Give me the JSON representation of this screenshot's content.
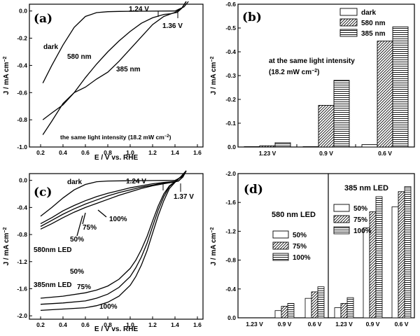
{
  "chart_data": [
    {
      "panel": "(a)",
      "type": "line",
      "xlabel": "E / V vs. RHE",
      "ylabel": "J / mA cm−2",
      "xlim": [
        0.1,
        1.65
      ],
      "ylim": [
        -1.0,
        0.05
      ],
      "xticks": [
        "0.2",
        "0.4",
        "0.6",
        "0.8",
        "1.0",
        "1.2",
        "1.4",
        "1.6"
      ],
      "yticks": [
        "-1.0",
        "-0.8",
        "-0.6",
        "-0.4",
        "-0.2",
        "0.0"
      ],
      "series": [
        {
          "name": "dark",
          "x": [
            0.22,
            0.3,
            0.4,
            0.5,
            0.6,
            0.7,
            0.8,
            0.9,
            1.0,
            1.2,
            1.4,
            1.48,
            1.52
          ],
          "y": [
            -0.53,
            -0.4,
            -0.25,
            -0.12,
            -0.04,
            -0.012,
            -0.005,
            -0.003,
            -0.002,
            -0.001,
            0.0,
            0.03,
            0.07
          ]
        },
        {
          "name": "580 nm",
          "x": [
            0.22,
            0.3,
            0.4,
            0.5,
            0.6,
            0.7,
            0.8,
            0.9,
            1.0,
            1.1,
            1.2,
            1.3,
            1.36,
            1.42,
            1.46,
            1.5
          ],
          "y": [
            -0.8,
            -0.75,
            -0.69,
            -0.6,
            -0.49,
            -0.39,
            -0.3,
            -0.22,
            -0.15,
            -0.09,
            -0.05,
            -0.025,
            -0.02,
            -0.01,
            0.02,
            0.07
          ]
        },
        {
          "name": "385 nm",
          "x": [
            0.22,
            0.3,
            0.4,
            0.5,
            0.6,
            0.7,
            0.8,
            0.9,
            1.0,
            1.1,
            1.2,
            1.3,
            1.4,
            1.46,
            1.5
          ],
          "y": [
            -0.91,
            -0.81,
            -0.68,
            -0.6,
            -0.56,
            -0.5,
            -0.45,
            -0.37,
            -0.28,
            -0.19,
            -0.1,
            -0.04,
            -0.01,
            0.02,
            0.07
          ]
        }
      ],
      "labels": {
        "dark": "dark",
        "l580": "580 nm",
        "l385": "385 nm",
        "v1": "1.24 V",
        "v2": "1.36 V",
        "note": "the same light intensity (18.2 mW cm−2)"
      }
    },
    {
      "panel": "(b)",
      "type": "bar",
      "ylabel": "J / mA cm−2",
      "categories": [
        "1.23 V",
        "0.9 V",
        "0.6 V"
      ],
      "ylim": [
        0.0,
        -0.6
      ],
      "yticks": [
        "0.0",
        "-0.1",
        "-0.2",
        "-0.3",
        "-0.4",
        "-0.5",
        "-0.6"
      ],
      "series": [
        {
          "name": "dark",
          "values": [
            0.0,
            0.0,
            -0.01
          ]
        },
        {
          "name": "580 nm",
          "values": [
            -0.005,
            -0.175,
            -0.445
          ]
        },
        {
          "name": "385 nm",
          "values": [
            -0.018,
            -0.28,
            -0.505
          ]
        }
      ],
      "annotation": "at the same light intensity",
      "annotation2": "(18.2 mW cm−2)"
    },
    {
      "panel": "(c)",
      "type": "line",
      "xlabel": "E / V vs. RHE",
      "ylabel": "J / mA cm−2",
      "xlim": [
        0.1,
        1.65
      ],
      "ylim": [
        -2.05,
        0.1
      ],
      "xticks": [
        "0.2",
        "0.4",
        "0.6",
        "0.8",
        "1.0",
        "1.2",
        "1.4",
        "1.6"
      ],
      "yticks": [
        "-2.0",
        "-1.6",
        "-1.2",
        "-0.8",
        "-0.4",
        "0.0"
      ],
      "series": [
        {
          "name": "dark",
          "x": [
            0.2,
            0.3,
            0.4,
            0.5,
            0.6,
            0.7,
            0.8,
            1.0,
            1.2,
            1.4,
            1.46,
            1.5
          ],
          "y": [
            -0.53,
            -0.4,
            -0.26,
            -0.14,
            -0.06,
            -0.02,
            -0.01,
            -0.005,
            -0.002,
            0.0,
            0.05,
            0.15
          ]
        },
        {
          "name": "580nm 50%",
          "x": [
            0.2,
            0.3,
            0.4,
            0.5,
            0.6,
            0.7,
            0.8,
            0.9,
            1.0,
            1.1,
            1.2,
            1.3,
            1.37,
            1.43,
            1.47,
            1.5
          ],
          "y": [
            -0.72,
            -0.64,
            -0.55,
            -0.47,
            -0.4,
            -0.34,
            -0.28,
            -0.22,
            -0.17,
            -0.12,
            -0.08,
            -0.05,
            -0.03,
            -0.01,
            0.05,
            0.15
          ]
        },
        {
          "name": "580nm 75%",
          "x": [
            0.2,
            0.3,
            0.4,
            0.5,
            0.6,
            0.7,
            0.8,
            0.9,
            1.0,
            1.1,
            1.2,
            1.3,
            1.37,
            1.43,
            1.47,
            1.5
          ],
          "y": [
            -0.68,
            -0.59,
            -0.5,
            -0.42,
            -0.35,
            -0.29,
            -0.23,
            -0.18,
            -0.14,
            -0.1,
            -0.07,
            -0.04,
            -0.03,
            -0.01,
            0.05,
            0.15
          ]
        },
        {
          "name": "580nm 100%",
          "x": [
            0.2,
            0.3,
            0.4,
            0.5,
            0.6,
            0.7,
            0.8,
            0.9,
            1.0,
            1.1,
            1.2,
            1.3,
            1.37,
            1.43,
            1.47,
            1.5
          ],
          "y": [
            -0.64,
            -0.55,
            -0.45,
            -0.37,
            -0.3,
            -0.24,
            -0.19,
            -0.15,
            -0.11,
            -0.08,
            -0.05,
            -0.03,
            -0.02,
            -0.01,
            0.05,
            0.15
          ]
        },
        {
          "name": "385nm 50%",
          "x": [
            0.2,
            0.4,
            0.6,
            0.7,
            0.8,
            0.9,
            1.0,
            1.05,
            1.1,
            1.15,
            1.2,
            1.25,
            1.3,
            1.35,
            1.4,
            1.45,
            1.5
          ],
          "y": [
            -1.74,
            -1.71,
            -1.66,
            -1.62,
            -1.56,
            -1.46,
            -1.3,
            -1.18,
            -1.02,
            -0.83,
            -0.6,
            -0.38,
            -0.2,
            -0.08,
            -0.02,
            0.05,
            0.15
          ]
        },
        {
          "name": "385nm 75%",
          "x": [
            0.2,
            0.4,
            0.6,
            0.7,
            0.8,
            0.9,
            1.0,
            1.05,
            1.1,
            1.15,
            1.2,
            1.25,
            1.3,
            1.35,
            1.4,
            1.45,
            1.5
          ],
          "y": [
            -1.83,
            -1.81,
            -1.78,
            -1.74,
            -1.68,
            -1.58,
            -1.42,
            -1.29,
            -1.13,
            -0.93,
            -0.68,
            -0.44,
            -0.24,
            -0.09,
            -0.02,
            0.05,
            0.15
          ]
        },
        {
          "name": "385nm 100%",
          "x": [
            0.2,
            0.4,
            0.6,
            0.7,
            0.8,
            0.9,
            1.0,
            1.05,
            1.1,
            1.15,
            1.2,
            1.25,
            1.3,
            1.35,
            1.4,
            1.45,
            1.5
          ],
          "y": [
            -1.92,
            -1.9,
            -1.88,
            -1.85,
            -1.8,
            -1.71,
            -1.55,
            -1.42,
            -1.25,
            -1.04,
            -0.78,
            -0.52,
            -0.3,
            -0.12,
            -0.03,
            0.05,
            0.15
          ]
        }
      ],
      "labels": {
        "dark": "dark",
        "led580": "580nm LED",
        "led385": "385nm LED",
        "p50": "50%",
        "p75": "75%",
        "p100": "100%",
        "v1": "1.24 V",
        "v2": "1.37 V"
      }
    },
    {
      "panel": "(d)",
      "type": "bar",
      "ylabel": "J / mA cm−2",
      "ylim": [
        0.0,
        -2.0
      ],
      "yticks": [
        "0.0",
        "-0.4",
        "-0.8",
        "-1.2",
        "-1.6",
        "-2.0"
      ],
      "legend": [
        "50%",
        "75%",
        "100%"
      ],
      "groups": [
        {
          "title": "580 nm LED",
          "categories": [
            "1.23 V",
            "0.9 V",
            "0.6 V"
          ],
          "series": [
            {
              "name": "50%",
              "values": [
                0.0,
                -0.1,
                -0.27
              ]
            },
            {
              "name": "75%",
              "values": [
                0.0,
                -0.16,
                -0.36
              ]
            },
            {
              "name": "100%",
              "values": [
                0.0,
                -0.2,
                -0.43
              ]
            }
          ]
        },
        {
          "title": "385 nm LED",
          "categories": [
            "1.23 V",
            "0.9 V",
            "0.6 V"
          ],
          "series": [
            {
              "name": "50%",
              "values": [
                -0.14,
                -1.25,
                -1.54
              ]
            },
            {
              "name": "75%",
              "values": [
                -0.2,
                -1.47,
                -1.75
              ]
            },
            {
              "name": "100%",
              "values": [
                -0.28,
                -1.68,
                -1.82
              ]
            }
          ]
        }
      ]
    }
  ]
}
